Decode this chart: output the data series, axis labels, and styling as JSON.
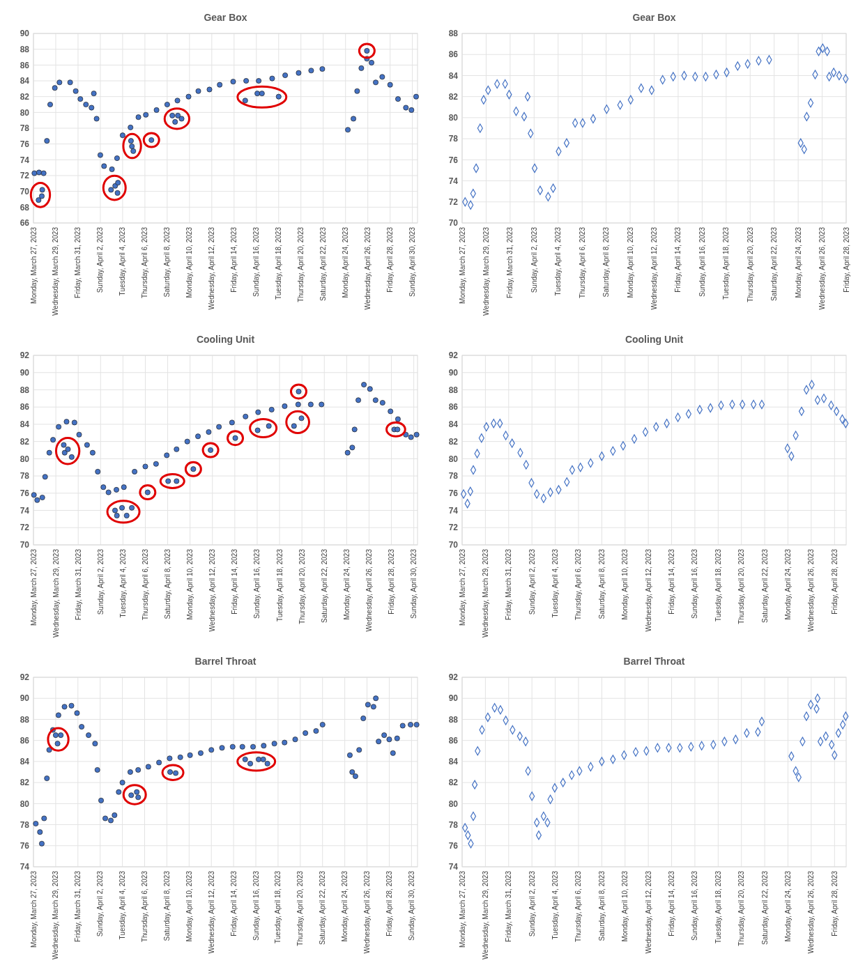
{
  "chart_data": [
    {
      "type": "scatter",
      "title": "Gear Box",
      "marker": "circle",
      "grid": true,
      "xlim": [
        "2023-03-27",
        "2023-04-30T11:00"
      ],
      "ylim": [
        66,
        90
      ],
      "yticks": [
        66,
        68,
        70,
        72,
        74,
        76,
        78,
        80,
        82,
        84,
        86,
        88,
        90
      ],
      "xticks": [
        {
          "value": "2023-03-27",
          "label": "Monday, March 27, 2023"
        },
        {
          "value": "2023-03-29",
          "label": "Wednesday, March 29, 2023"
        },
        {
          "value": "2023-03-31",
          "label": "Friday, March 31, 2023"
        },
        {
          "value": "2023-04-02",
          "label": "Sunday, April 2, 2023"
        },
        {
          "value": "2023-04-04",
          "label": "Tuesday, April 4, 2023"
        },
        {
          "value": "2023-04-06",
          "label": "Thursday, April 6, 2023"
        },
        {
          "value": "2023-04-08",
          "label": "Saturday, April 8, 2023"
        },
        {
          "value": "2023-04-10",
          "label": "Monday, April 10, 2023"
        },
        {
          "value": "2023-04-12",
          "label": "Wednesday, April 12, 2023"
        },
        {
          "value": "2023-04-14",
          "label": "Friday, April 14, 2023"
        },
        {
          "value": "2023-04-16",
          "label": "Sunday, April 16, 2023"
        },
        {
          "value": "2023-04-18",
          "label": "Tuesday, April 18, 2023"
        },
        {
          "value": "2023-04-20",
          "label": "Thursday, April 20, 2023"
        },
        {
          "value": "2023-04-22",
          "label": "Saturday, April 22, 2023"
        },
        {
          "value": "2023-04-24",
          "label": "Monday, April 24, 2023"
        },
        {
          "value": "2023-04-26",
          "label": "Wednesday, April 26, 2023"
        },
        {
          "value": "2023-04-28",
          "label": "Friday, April 28, 2023"
        },
        {
          "value": "2023-04-30",
          "label": "Sunday, April 30, 2023"
        }
      ],
      "series": [
        {
          "color": "#4472c4",
          "x": [
            "2023-03-27T02:00",
            "2023-03-27T12:00",
            "2023-03-27T22:00",
            "2023-03-28T05:00",
            "2023-03-28T12:00",
            "2023-03-28T22:00",
            "2023-03-29T08:00",
            "2023-03-30T07:00",
            "2023-03-30T19:00",
            "2023-03-31T05:00",
            "2023-03-31T17:00",
            "2023-04-01T05:00",
            "2023-04-01T10:00",
            "2023-04-01T16:00",
            "2023-04-02T00:00",
            "2023-04-02T08:00",
            "2023-04-03T01:00",
            "2023-04-03T12:00",
            "2023-04-04T00:00",
            "2023-04-04T17:00",
            "2023-04-05T10:00",
            "2023-04-06T02:00",
            "2023-04-07T01:00",
            "2023-04-08T00:00",
            "2023-04-08T22:00",
            "2023-04-09T22:00",
            "2023-04-10T19:00",
            "2023-04-11T19:00",
            "2023-04-12T17:00",
            "2023-04-13T22:00",
            "2023-04-15T02:00",
            "2023-04-16T05:00",
            "2023-04-17T10:00",
            "2023-04-18T14:00",
            "2023-04-19T19:00",
            "2023-04-20T22:00",
            "2023-04-21T22:00",
            "2023-04-24T05:00",
            "2023-04-24T17:00",
            "2023-04-25T01:00",
            "2023-04-25T10:00",
            "2023-04-25T22:00",
            "2023-04-26T08:00",
            "2023-04-26T17:00",
            "2023-04-27T07:00",
            "2023-04-28T00:00",
            "2023-04-28T17:00",
            "2023-04-29T10:00",
            "2023-04-29T22:00",
            "2023-04-30T08:00"
          ],
          "values": [
            72.3,
            72.4,
            72.3,
            76.4,
            81,
            83.1,
            83.8,
            83.8,
            82.7,
            81.7,
            81,
            80.6,
            82.4,
            79.2,
            74.6,
            73.2,
            72.8,
            74.2,
            77.1,
            78.1,
            79.4,
            79.7,
            80.3,
            81,
            81.5,
            82,
            82.7,
            82.9,
            83.5,
            83.9,
            84,
            84,
            84.3,
            84.7,
            85,
            85.3,
            85.5,
            77.8,
            79.2,
            82.7,
            85.6,
            86.8,
            86.3,
            83.8,
            84.5,
            83.5,
            81.7,
            80.6,
            80.3,
            82
          ]
        },
        {
          "color": "#4472c4",
          "x": [
            "2023-03-27T11:00",
            "2023-03-27T18:00",
            "2023-03-27T19:00"
          ],
          "values": [
            68.9,
            69.4,
            70.2
          ]
        },
        {
          "color": "#4472c4",
          "x": [
            "2023-04-02T23:00",
            "2023-04-03T08:00",
            "2023-04-03T13:00",
            "2023-04-03T14:00"
          ],
          "values": [
            70.2,
            70.7,
            69.8,
            71.1
          ]
        },
        {
          "color": "#4472c4",
          "x": [
            "2023-04-04T18:00",
            "2023-04-04T20:00",
            "2023-04-04T23:00"
          ],
          "values": [
            76.4,
            75.7,
            75.1
          ]
        },
        {
          "color": "#4472c4",
          "x": [
            "2023-04-06T14:00"
          ],
          "values": [
            76.5
          ]
        },
        {
          "color": "#4472c4",
          "x": [
            "2023-04-08T11:00",
            "2023-04-08T17:00",
            "2023-04-08T23:00",
            "2023-04-09T07:00"
          ],
          "values": [
            79.6,
            78.8,
            79.6,
            79.2
          ]
        },
        {
          "color": "#4472c4",
          "x": [
            "2023-04-15T00:00",
            "2023-04-16T02:00",
            "2023-04-16T12:00",
            "2023-04-18T00:00"
          ],
          "values": [
            81.5,
            82.4,
            82.4,
            82
          ]
        },
        {
          "color": "#4472c4",
          "x": [
            "2023-04-25T22:00"
          ],
          "values": [
            87.8
          ]
        }
      ]
    },
    {
      "type": "scatter",
      "title": "Gear Box",
      "marker": "diamond",
      "grid": true,
      "xlim": [
        "2023-03-27",
        "2023-04-28"
      ],
      "ylim": [
        70,
        88
      ],
      "yticks": [
        70,
        72,
        74,
        76,
        78,
        80,
        82,
        84,
        86,
        88
      ],
      "xticks": [
        {
          "value": "2023-03-27",
          "label": "Monday, March 27, 2023"
        },
        {
          "value": "2023-03-29",
          "label": "Wednesday, March 29, 2023"
        },
        {
          "value": "2023-03-31",
          "label": "Friday, March 31, 2023"
        },
        {
          "value": "2023-04-02",
          "label": "Sunday, April 2, 2023"
        },
        {
          "value": "2023-04-04",
          "label": "Tuesday, April 4, 2023"
        },
        {
          "value": "2023-04-06",
          "label": "Thursday, April 6, 2023"
        },
        {
          "value": "2023-04-08",
          "label": "Saturday, April 8, 2023"
        },
        {
          "value": "2023-04-10",
          "label": "Monday, April 10, 2023"
        },
        {
          "value": "2023-04-12",
          "label": "Wednesday, April 12, 2023"
        },
        {
          "value": "2023-04-14",
          "label": "Friday, April 14, 2023"
        },
        {
          "value": "2023-04-16",
          "label": "Sunday, April 16, 2023"
        },
        {
          "value": "2023-04-18",
          "label": "Tuesday, April 18, 2023"
        },
        {
          "value": "2023-04-20",
          "label": "Thursday, April 20, 2023"
        },
        {
          "value": "2023-04-22",
          "label": "Saturday, April 22, 2023"
        },
        {
          "value": "2023-04-24",
          "label": "Monday, April 24, 2023"
        },
        {
          "value": "2023-04-26",
          "label": "Wednesday, April 26, 2023"
        },
        {
          "value": "2023-04-28",
          "label": "Friday, April 28, 2023"
        }
      ],
      "series": [
        {
          "color": "#4472c4",
          "x": [
            "2023-03-27T06:00",
            "2023-03-27T17:00",
            "2023-03-27T22:00",
            "2023-03-28T04:00",
            "2023-03-28T12:00",
            "2023-03-28T19:00",
            "2023-03-29T04:00",
            "2023-03-29T22:00",
            "2023-03-30T14:00",
            "2023-03-30T22:00",
            "2023-03-31T12:00",
            "2023-04-01T04:00",
            "2023-04-01T11:00",
            "2023-04-01T17:00",
            "2023-04-02T01:00",
            "2023-04-02T12:00",
            "2023-04-03T04:00",
            "2023-04-03T14:00",
            "2023-04-04T01:00",
            "2023-04-04T17:00",
            "2023-04-05T10:00",
            "2023-04-06T01:00",
            "2023-04-06T22:00",
            "2023-04-08T01:00",
            "2023-04-09T04:00",
            "2023-04-10T01:00",
            "2023-04-10T22:00",
            "2023-04-11T19:00",
            "2023-04-12T17:00",
            "2023-04-13T14:00",
            "2023-04-14T12:00",
            "2023-04-15T10:00",
            "2023-04-16T07:00",
            "2023-04-17T04:00",
            "2023-04-18T01:00",
            "2023-04-18T23:00",
            "2023-04-19T19:00",
            "2023-04-20T17:00",
            "2023-04-21T14:00",
            "2023-04-24T05:00",
            "2023-04-24T12:00",
            "2023-04-24T17:00",
            "2023-04-25T01:00",
            "2023-04-25T10:00",
            "2023-04-25T17:00",
            "2023-04-26T01:00",
            "2023-04-26T10:00",
            "2023-04-26T14:00",
            "2023-04-26T23:00",
            "2023-04-27T10:00",
            "2023-04-27T23:00"
          ],
          "values": [
            72,
            71.7,
            72.8,
            75.2,
            79,
            81.7,
            82.6,
            83.2,
            83.2,
            82.2,
            80.6,
            80.1,
            82,
            78.5,
            75.2,
            73.1,
            72.5,
            73.3,
            76.8,
            77.6,
            79.5,
            79.5,
            79.9,
            80.8,
            81.2,
            81.7,
            82.8,
            82.6,
            83.6,
            83.9,
            84,
            83.9,
            83.9,
            84.1,
            84.3,
            84.9,
            85.1,
            85.4,
            85.5,
            77.6,
            77,
            80.1,
            81.4,
            84.1,
            86.3,
            86.6,
            86.3,
            83.9,
            84.3,
            84,
            83.7
          ]
        }
      ]
    },
    {
      "type": "scatter",
      "title": "Cooling Unit",
      "marker": "circle",
      "grid": true,
      "xlim": [
        "2023-03-27",
        "2023-04-30T08:00"
      ],
      "ylim": [
        70,
        92
      ],
      "yticks": [
        70,
        72,
        74,
        76,
        78,
        80,
        82,
        84,
        86,
        88,
        90,
        92
      ],
      "xticks": [
        {
          "value": "2023-03-27",
          "label": "Monday, March 27, 2023"
        },
        {
          "value": "2023-03-29",
          "label": "Wednesday, March 29, 2023"
        },
        {
          "value": "2023-03-31",
          "label": "Friday, March 31, 2023"
        },
        {
          "value": "2023-04-02",
          "label": "Sunday, April 2, 2023"
        },
        {
          "value": "2023-04-04",
          "label": "Tuesday, April 4, 2023"
        },
        {
          "value": "2023-04-06",
          "label": "Thursday, April 6, 2023"
        },
        {
          "value": "2023-04-08",
          "label": "Saturday, April 8, 2023"
        },
        {
          "value": "2023-04-10",
          "label": "Monday, April 10, 2023"
        },
        {
          "value": "2023-04-12",
          "label": "Wednesday, April 12, 2023"
        },
        {
          "value": "2023-04-14",
          "label": "Friday, April 14, 2023"
        },
        {
          "value": "2023-04-16",
          "label": "Sunday, April 16, 2023"
        },
        {
          "value": "2023-04-18",
          "label": "Tuesday, April 18, 2023"
        },
        {
          "value": "2023-04-20",
          "label": "Thursday, April 20, 2023"
        },
        {
          "value": "2023-04-22",
          "label": "Saturday, April 22, 2023"
        },
        {
          "value": "2023-04-24",
          "label": "Monday, April 24, 2023"
        },
        {
          "value": "2023-04-26",
          "label": "Wednesday, April 26, 2023"
        },
        {
          "value": "2023-04-28",
          "label": "Friday, April 28, 2023"
        },
        {
          "value": "2023-04-30",
          "label": "Sunday, April 30, 2023"
        }
      ],
      "series": [
        {
          "color": "#4472c4",
          "x": [
            "2023-03-27T01:00",
            "2023-03-27T08:00",
            "2023-03-27T19:00",
            "2023-03-28T01:00",
            "2023-03-28T10:00",
            "2023-03-28T18:00",
            "2023-03-29T06:00",
            "2023-03-29T23:00",
            "2023-03-30T16:00",
            "2023-03-31T02:00",
            "2023-03-31T19:00",
            "2023-04-01T07:00",
            "2023-04-01T18:00",
            "2023-04-02T06:00",
            "2023-04-02T17:00",
            "2023-04-03T10:00",
            "2023-04-04T02:00",
            "2023-04-05T01:00",
            "2023-04-06T00:00",
            "2023-04-06T23:00",
            "2023-04-07T22:00",
            "2023-04-08T19:00",
            "2023-04-09T18:00",
            "2023-04-10T17:00",
            "2023-04-11T16:00",
            "2023-04-12T14:00",
            "2023-04-13T18:00",
            "2023-04-14T23:00",
            "2023-04-16T02:00",
            "2023-04-17T07:00",
            "2023-04-18T11:00",
            "2023-04-19T16:00",
            "2023-04-20T19:00",
            "2023-04-21T18:00",
            "2023-04-24T02:00",
            "2023-04-24T12:00",
            "2023-04-24T17:00",
            "2023-04-25T01:00",
            "2023-04-25T13:00",
            "2023-04-26T02:00",
            "2023-04-26T14:00",
            "2023-04-27T05:00",
            "2023-04-27T22:00",
            "2023-04-28T14:00",
            "2023-04-29T07:00",
            "2023-04-29T18:00",
            "2023-04-30T06:00"
          ],
          "values": [
            75.8,
            75.2,
            75.5,
            77.9,
            80.7,
            82.2,
            83.7,
            84.3,
            84.2,
            82.8,
            81.6,
            80.7,
            78.5,
            76.7,
            76.1,
            76.4,
            76.7,
            78.5,
            79.1,
            79.4,
            80.4,
            81.1,
            82,
            82.6,
            83.1,
            83.7,
            84.2,
            84.9,
            85.4,
            85.7,
            86.1,
            86.3,
            86.3,
            86.3,
            80.7,
            81.3,
            83.4,
            86.8,
            88.6,
            88.1,
            86.8,
            86.5,
            85.5,
            84.6,
            82.8,
            82.5,
            82.8
          ]
        },
        {
          "color": "#4472c4",
          "x": [
            "2023-03-29T17:00",
            "2023-03-29T19:00",
            "2023-03-30T02:00",
            "2023-03-30T10:00"
          ],
          "values": [
            81.6,
            80.7,
            81.1,
            80.2
          ]
        },
        {
          "color": "#4472c4",
          "x": [
            "2023-04-03T07:00",
            "2023-04-03T11:00",
            "2023-04-03T22:00",
            "2023-04-04T08:00",
            "2023-04-04T19:00"
          ],
          "values": [
            74,
            73.4,
            74.3,
            73.4,
            74.3
          ]
        },
        {
          "color": "#4472c4",
          "x": [
            "2023-04-06T05:00"
          ],
          "values": [
            76.1
          ]
        },
        {
          "color": "#4472c4",
          "x": [
            "2023-04-08T01:00",
            "2023-04-08T19:00"
          ],
          "values": [
            77.4,
            77.4
          ]
        },
        {
          "color": "#4472c4",
          "x": [
            "2023-04-10T07:00"
          ],
          "values": [
            78.8
          ]
        },
        {
          "color": "#4472c4",
          "x": [
            "2023-04-11T20:00"
          ],
          "values": [
            81
          ]
        },
        {
          "color": "#4472c4",
          "x": [
            "2023-04-14T01:00"
          ],
          "values": [
            82.4
          ]
        },
        {
          "color": "#4472c4",
          "x": [
            "2023-04-16T01:00",
            "2023-04-17T01:00"
          ],
          "values": [
            83.3,
            83.8
          ]
        },
        {
          "color": "#4472c4",
          "x": [
            "2023-04-19T17:00"
          ],
          "values": [
            87.8
          ]
        },
        {
          "color": "#4472c4",
          "x": [
            "2023-04-19T07:00",
            "2023-04-19T23:00"
          ],
          "values": [
            83.8,
            84.7
          ]
        },
        {
          "color": "#4472c4",
          "x": [
            "2023-04-28T06:00",
            "2023-04-28T13:00"
          ],
          "values": [
            83.4,
            83.4
          ]
        }
      ]
    },
    {
      "type": "scatter",
      "title": "Cooling Unit",
      "marker": "diamond",
      "grid": true,
      "xlim": [
        "2023-03-27",
        "2023-04-29"
      ],
      "ylim": [
        70,
        92
      ],
      "yticks": [
        70,
        72,
        74,
        76,
        78,
        80,
        82,
        84,
        86,
        88,
        90,
        92
      ],
      "xticks": [
        {
          "value": "2023-03-27",
          "label": "Monday, March 27, 2023"
        },
        {
          "value": "2023-03-29",
          "label": "Wednesday, March 29, 2023"
        },
        {
          "value": "2023-03-31",
          "label": "Friday, March 31, 2023"
        },
        {
          "value": "2023-04-02",
          "label": "Sunday, April 2, 2023"
        },
        {
          "value": "2023-04-04",
          "label": "Tuesday, April 4, 2023"
        },
        {
          "value": "2023-04-06",
          "label": "Thursday, April 6, 2023"
        },
        {
          "value": "2023-04-08",
          "label": "Saturday, April 8, 2023"
        },
        {
          "value": "2023-04-10",
          "label": "Monday, April 10, 2023"
        },
        {
          "value": "2023-04-12",
          "label": "Wednesday, April 12, 2023"
        },
        {
          "value": "2023-04-14",
          "label": "Friday, April 14, 2023"
        },
        {
          "value": "2023-04-16",
          "label": "Sunday, April 16, 2023"
        },
        {
          "value": "2023-04-18",
          "label": "Tuesday, April 18, 2023"
        },
        {
          "value": "2023-04-20",
          "label": "Thursday, April 20, 2023"
        },
        {
          "value": "2023-04-22",
          "label": "Saturday, April 22, 2023"
        },
        {
          "value": "2023-04-24",
          "label": "Monday, April 24, 2023"
        },
        {
          "value": "2023-04-26",
          "label": "Wednesday, April 26, 2023"
        },
        {
          "value": "2023-04-28",
          "label": "Friday, April 28, 2023"
        }
      ],
      "series": [
        {
          "color": "#4472c4",
          "x": [
            "2023-03-27T03:00",
            "2023-03-27T11:00",
            "2023-03-27T17:00",
            "2023-03-27T23:00",
            "2023-03-28T07:00",
            "2023-03-28T16:00",
            "2023-03-29T02:00",
            "2023-03-29T17:00",
            "2023-03-30T06:00",
            "2023-03-30T18:00",
            "2023-03-31T07:00",
            "2023-04-01T00:00",
            "2023-04-01T12:00",
            "2023-04-01T23:00",
            "2023-04-02T10:00",
            "2023-04-03T00:00",
            "2023-04-03T14:00",
            "2023-04-04T07:00",
            "2023-04-05T00:00",
            "2023-04-05T11:00",
            "2023-04-06T04:00",
            "2023-04-07T01:00",
            "2023-04-08T00:00",
            "2023-04-08T23:00",
            "2023-04-09T20:00",
            "2023-04-10T19:00",
            "2023-04-11T18:00",
            "2023-04-12T16:00",
            "2023-04-13T14:00",
            "2023-04-14T13:00",
            "2023-04-15T11:00",
            "2023-04-16T10:00",
            "2023-04-17T08:00",
            "2023-04-18T06:00",
            "2023-04-19T05:00",
            "2023-04-20T02:00",
            "2023-04-21T01:00",
            "2023-04-21T18:00",
            "2023-04-23T23:00",
            "2023-04-24T07:00",
            "2023-04-24T16:00",
            "2023-04-25T04:00",
            "2023-04-25T14:00",
            "2023-04-26T01:00",
            "2023-04-26T13:00",
            "2023-04-27T02:00",
            "2023-04-27T17:00",
            "2023-04-28T04:00",
            "2023-04-28T16:00",
            "2023-04-28T23:00"
          ],
          "values": [
            75.9,
            74.8,
            76.2,
            78.7,
            80.6,
            82.4,
            83.7,
            84.1,
            84.1,
            82.7,
            81.8,
            80.7,
            79.3,
            77.2,
            75.9,
            75.4,
            76.1,
            76.4,
            77.3,
            78.7,
            79,
            79.5,
            80.3,
            80.9,
            81.5,
            82.3,
            83.1,
            83.7,
            84.1,
            84.8,
            85.2,
            85.7,
            85.9,
            86.2,
            86.3,
            86.3,
            86.3,
            86.3,
            81.2,
            80.3,
            82.7,
            85.5,
            88,
            88.6,
            86.8,
            87,
            86.2,
            85.5,
            84.6,
            84.1
          ]
        }
      ]
    },
    {
      "type": "scatter",
      "title": "Barrel Throat",
      "marker": "circle",
      "grid": true,
      "xlim": [
        "2023-03-27",
        "2023-04-30T13:00"
      ],
      "ylim": [
        74,
        92
      ],
      "yticks": [
        74,
        76,
        78,
        80,
        82,
        84,
        86,
        88,
        90,
        92
      ],
      "xticks": [
        {
          "value": "2023-03-27",
          "label": "Monday, March 27, 2023"
        },
        {
          "value": "2023-03-29",
          "label": "Wednesday, March 29, 2023"
        },
        {
          "value": "2023-03-31",
          "label": "Friday, March 31, 2023"
        },
        {
          "value": "2023-04-02",
          "label": "Sunday, April 2, 2023"
        },
        {
          "value": "2023-04-04",
          "label": "Tuesday, April 4, 2023"
        },
        {
          "value": "2023-04-06",
          "label": "Thursday, April 6, 2023"
        },
        {
          "value": "2023-04-08",
          "label": "Saturday, April 8, 2023"
        },
        {
          "value": "2023-04-10",
          "label": "Monday, April 10, 2023"
        },
        {
          "value": "2023-04-12",
          "label": "Wednesday, April 12, 2023"
        },
        {
          "value": "2023-04-14",
          "label": "Friday, April 14, 2023"
        },
        {
          "value": "2023-04-16",
          "label": "Sunday, April 16, 2023"
        },
        {
          "value": "2023-04-18",
          "label": "Tuesday, April 18, 2023"
        },
        {
          "value": "2023-04-20",
          "label": "Thursday, April 20, 2023"
        },
        {
          "value": "2023-04-22",
          "label": "Saturday, April 22, 2023"
        },
        {
          "value": "2023-04-24",
          "label": "Monday, April 24, 2023"
        },
        {
          "value": "2023-04-26",
          "label": "Wednesday, April 26, 2023"
        },
        {
          "value": "2023-04-28",
          "label": "Friday, April 28, 2023"
        },
        {
          "value": "2023-04-30",
          "label": "Sunday, April 30, 2023"
        }
      ],
      "series": [
        {
          "color": "#4472c4",
          "x": [
            "2023-03-27T05:00",
            "2023-03-27T14:00",
            "2023-03-27T18:00",
            "2023-03-27T23:00",
            "2023-03-28T05:00",
            "2023-03-28T10:00",
            "2023-03-28T18:00",
            "2023-03-29T06:00",
            "2023-03-29T19:00",
            "2023-03-30T10:00",
            "2023-03-30T22:00",
            "2023-03-31T08:00",
            "2023-03-31T23:00",
            "2023-04-01T13:00",
            "2023-04-01T18:00",
            "2023-04-02T02:00",
            "2023-04-02T11:00",
            "2023-04-02T23:00",
            "2023-04-03T07:00",
            "2023-04-03T16:00",
            "2023-04-04T00:00",
            "2023-04-04T17:00",
            "2023-04-05T10:00",
            "2023-04-06T08:00",
            "2023-04-07T07:00",
            "2023-04-08T06:00",
            "2023-04-09T05:00",
            "2023-04-10T02:00",
            "2023-04-11T01:00",
            "2023-04-12T00:00",
            "2023-04-12T23:00",
            "2023-04-13T22:00",
            "2023-04-14T19:00",
            "2023-04-15T18:00",
            "2023-04-16T17:00",
            "2023-04-17T16:00",
            "2023-04-18T14:00",
            "2023-04-19T13:00",
            "2023-04-20T11:00",
            "2023-04-21T10:00",
            "2023-04-22T00:00",
            "2023-04-24T11:00",
            "2023-04-24T16:00",
            "2023-04-24T23:00",
            "2023-04-25T07:00",
            "2023-04-25T16:00",
            "2023-04-26T02:00",
            "2023-04-26T14:00",
            "2023-04-26T19:00",
            "2023-04-27T01:00",
            "2023-04-27T13:00",
            "2023-04-28T00:00",
            "2023-04-28T08:00",
            "2023-04-28T17:00",
            "2023-04-29T05:00",
            "2023-04-29T22:00",
            "2023-04-30T11:00"
          ],
          "values": [
            78.1,
            77.3,
            76.2,
            78.6,
            82.4,
            85.1,
            87,
            88.4,
            89.2,
            89.3,
            88.6,
            87.3,
            86.5,
            85.7,
            83.2,
            80.3,
            78.6,
            78.4,
            78.9,
            81.1,
            82,
            83,
            83.2,
            83.5,
            83.9,
            84.3,
            84.4,
            84.6,
            84.8,
            85.1,
            85.3,
            85.4,
            85.4,
            85.4,
            85.5,
            85.7,
            85.8,
            86.1,
            86.7,
            86.9,
            87.5,
            84.6,
            83,
            82.6,
            85.1,
            88.1,
            89.4,
            89.2,
            90,
            85.9,
            86.5,
            86.1,
            84.8,
            86.2,
            87.4,
            87.5,
            87.5
          ]
        },
        {
          "color": "#4472c4",
          "x": [
            "2023-03-29T00:00",
            "2023-03-29T04:00",
            "2023-03-29T11:00"
          ],
          "values": [
            86.5,
            85.7,
            86.5
          ]
        },
        {
          "color": "#4472c4",
          "x": [
            "2023-04-04T19:00",
            "2023-04-05T07:00",
            "2023-04-05T10:00"
          ],
          "values": [
            80.8,
            81.1,
            80.6
          ]
        },
        {
          "color": "#4472c4",
          "x": [
            "2023-04-08T07:00",
            "2023-04-08T19:00"
          ],
          "values": [
            83,
            82.9
          ]
        },
        {
          "color": "#4472c4",
          "x": [
            "2023-04-15T01:00",
            "2023-04-15T12:00",
            "2023-04-16T06:00",
            "2023-04-16T16:00",
            "2023-04-17T01:00"
          ],
          "values": [
            84.2,
            83.8,
            84.2,
            84.2,
            83.8
          ]
        }
      ]
    },
    {
      "type": "scatter",
      "title": "Barrel Throat",
      "marker": "diamond",
      "grid": true,
      "xlim": [
        "2023-03-27",
        "2023-04-29"
      ],
      "ylim": [
        74,
        92
      ],
      "yticks": [
        74,
        76,
        78,
        80,
        82,
        84,
        86,
        88,
        90,
        92
      ],
      "xticks": [
        {
          "value": "2023-03-27",
          "label": "Monday, March 27, 2023"
        },
        {
          "value": "2023-03-29",
          "label": "Wednesday, March 29, 2023"
        },
        {
          "value": "2023-03-31",
          "label": "Friday, March 31, 2023"
        },
        {
          "value": "2023-04-02",
          "label": "Sunday, April 2, 2023"
        },
        {
          "value": "2023-04-04",
          "label": "Tuesday, April 4, 2023"
        },
        {
          "value": "2023-04-06",
          "label": "Thursday, April 6, 2023"
        },
        {
          "value": "2023-04-08",
          "label": "Saturday, April 8, 2023"
        },
        {
          "value": "2023-04-10",
          "label": "Monday, April 10, 2023"
        },
        {
          "value": "2023-04-12",
          "label": "Wednesday, April 12, 2023"
        },
        {
          "value": "2023-04-14",
          "label": "Friday, April 14, 2023"
        },
        {
          "value": "2023-04-16",
          "label": "Sunday, April 16, 2023"
        },
        {
          "value": "2023-04-18",
          "label": "Tuesday, April 18, 2023"
        },
        {
          "value": "2023-04-20",
          "label": "Thursday, April 20, 2023"
        },
        {
          "value": "2023-04-22",
          "label": "Saturday, April 22, 2023"
        },
        {
          "value": "2023-04-24",
          "label": "Monday, April 24, 2023"
        },
        {
          "value": "2023-04-26",
          "label": "Wednesday, April 26, 2023"
        },
        {
          "value": "2023-04-28",
          "label": "Friday, April 28, 2023"
        }
      ],
      "series": [
        {
          "color": "#4472c4",
          "x": [
            "2023-03-27T06:00",
            "2023-03-27T12:00",
            "2023-03-27T18:00",
            "2023-03-27T23:00",
            "2023-03-28T02:00",
            "2023-03-28T08:00",
            "2023-03-28T17:00",
            "2023-03-29T05:00",
            "2023-03-29T19:00",
            "2023-03-30T07:00",
            "2023-03-30T18:00",
            "2023-03-31T08:00",
            "2023-03-31T23:00",
            "2023-04-01T11:00",
            "2023-04-01T16:00",
            "2023-04-02T00:00",
            "2023-04-02T10:00",
            "2023-04-02T14:00",
            "2023-04-03T00:00",
            "2023-04-03T08:00",
            "2023-04-03T14:00",
            "2023-04-03T23:00",
            "2023-04-04T16:00",
            "2023-04-05T10:00",
            "2023-04-06T02:00",
            "2023-04-07T01:00",
            "2023-04-08T00:00",
            "2023-04-08T23:00",
            "2023-04-09T22:00",
            "2023-04-10T22:00",
            "2023-04-11T20:00",
            "2023-04-12T19:00",
            "2023-04-13T18:00",
            "2023-04-14T17:00",
            "2023-04-15T16:00",
            "2023-04-16T14:00",
            "2023-04-17T14:00",
            "2023-04-18T13:00",
            "2023-04-19T12:00",
            "2023-04-20T11:00",
            "2023-04-21T10:00",
            "2023-04-21T18:00",
            "2023-04-24T07:00",
            "2023-04-24T16:00",
            "2023-04-24T22:00",
            "2023-04-25T06:00",
            "2023-04-25T14:00",
            "2023-04-25T23:00",
            "2023-04-26T11:00",
            "2023-04-26T13:00",
            "2023-04-26T19:00",
            "2023-04-27T06:00",
            "2023-04-27T18:00",
            "2023-04-28T00:00",
            "2023-04-28T08:00",
            "2023-04-28T17:00",
            "2023-04-28T23:00"
          ],
          "values": [
            77.7,
            77,
            76.2,
            78.8,
            81.8,
            85,
            87,
            88.2,
            89.1,
            88.9,
            87.9,
            87,
            86.4,
            85.9,
            83.1,
            80.7,
            78.2,
            77,
            78.8,
            78.2,
            80.4,
            81.5,
            82,
            82.7,
            83.1,
            83.5,
            84,
            84.2,
            84.6,
            84.9,
            85,
            85.3,
            85.3,
            85.3,
            85.4,
            85.5,
            85.6,
            85.9,
            86.1,
            86.7,
            86.8,
            87.8,
            84.5,
            83.1,
            82.5,
            85.9,
            88.3,
            89.4,
            89,
            90,
            85.9,
            86.4,
            85.6,
            84.6,
            86.7,
            87.5,
            88.3
          ]
        }
      ]
    }
  ]
}
